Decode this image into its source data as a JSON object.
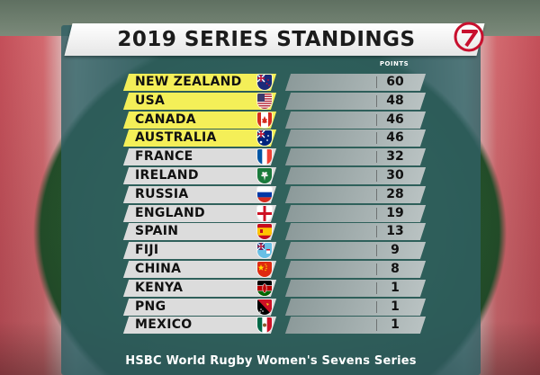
{
  "title": "2019 SERIES STANDINGS",
  "points_header": "POINTS",
  "footer": "HSBC World Rugby Women's Sevens Series",
  "highlight_color": "#f4ef58",
  "row_color": "#dcdcdc",
  "panel_color": "#305f64",
  "standings": [
    {
      "team": "NEW ZEALAND",
      "points": "60",
      "highlight": true,
      "flag_icon": "new-zealand-flag-icon"
    },
    {
      "team": "USA",
      "points": "48",
      "highlight": true,
      "flag_icon": "usa-flag-icon"
    },
    {
      "team": "CANADA",
      "points": "46",
      "highlight": true,
      "flag_icon": "canada-flag-icon"
    },
    {
      "team": "AUSTRALIA",
      "points": "46",
      "highlight": true,
      "flag_icon": "australia-flag-icon"
    },
    {
      "team": "FRANCE",
      "points": "32",
      "highlight": false,
      "flag_icon": "france-flag-icon"
    },
    {
      "team": "IRELAND",
      "points": "30",
      "highlight": false,
      "flag_icon": "ireland-flag-icon"
    },
    {
      "team": "RUSSIA",
      "points": "28",
      "highlight": false,
      "flag_icon": "russia-flag-icon"
    },
    {
      "team": "ENGLAND",
      "points": "19",
      "highlight": false,
      "flag_icon": "england-flag-icon"
    },
    {
      "team": "SPAIN",
      "points": "13",
      "highlight": false,
      "flag_icon": "spain-flag-icon"
    },
    {
      "team": "FIJI",
      "points": "9",
      "highlight": false,
      "flag_icon": "fiji-flag-icon"
    },
    {
      "team": "CHINA",
      "points": "8",
      "highlight": false,
      "flag_icon": "china-flag-icon"
    },
    {
      "team": "KENYA",
      "points": "1",
      "highlight": false,
      "flag_icon": "kenya-flag-icon"
    },
    {
      "team": "PNG",
      "points": "1",
      "highlight": false,
      "flag_icon": "png-flag-icon"
    },
    {
      "team": "MEXICO",
      "points": "1",
      "highlight": false,
      "flag_icon": "mexico-flag-icon"
    }
  ]
}
